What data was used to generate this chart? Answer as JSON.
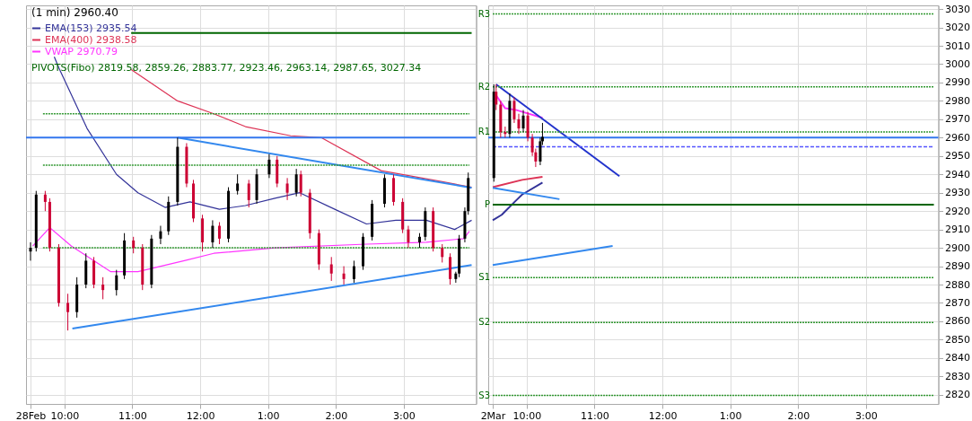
{
  "chart_data": [
    {
      "type": "candlestick",
      "title": "(1 min) 2960.40",
      "x": [
        "--02-28T09:30",
        "--02-28T09:35",
        "--02-28T09:43",
        "--02-28T09:47",
        "--02-28T09:55",
        "--02-28T10:03",
        "--02-28T10:11",
        "--02-28T10:19",
        "--02-28T10:26",
        "--02-28T10:34",
        "--02-28T10:46",
        "--02-28T10:53",
        "--02-28T11:01",
        "--02-28T11:09",
        "--02-28T11:17",
        "--02-28T11:25",
        "--02-28T11:32",
        "--02-28T11:40",
        "--02-28T11:48",
        "--02-28T11:54",
        "--02-28T12:02",
        "--02-28T12:11",
        "--02-28T12:17",
        "--02-28T12:25",
        "--02-28T12:33",
        "--02-28T12:43",
        "--02-28T12:50",
        "--02-28T13:01",
        "--02-28T13:08",
        "--02-28T13:17",
        "--02-28T13:25",
        "--02-28T13:29",
        "--02-28T13:37",
        "--02-28T13:45",
        "--02-28T13:56",
        "--02-28T14:07",
        "--02-28T14:16",
        "--02-28T14:24",
        "--02-28T14:32",
        "--02-28T14:43",
        "--02-28T14:51",
        "--02-28T14:59",
        "--02-28T15:04",
        "--02-28T15:14",
        "--02-28T15:19",
        "--02-28T15:26",
        "--02-28T15:34",
        "--02-28T15:41",
        "--02-28T15:46",
        "--02-28T15:49",
        "--02-28T15:54",
        "--02-28T15:57"
      ],
      "ohlc": [
        [
          2898,
          2903,
          2893,
          2900
        ],
        [
          2900,
          2931,
          2898,
          2929
        ],
        [
          2929,
          2931,
          2920,
          2925
        ],
        [
          2925,
          2927,
          2898,
          2900
        ],
        [
          2900,
          2902,
          2868,
          2870
        ],
        [
          2870,
          2875,
          2855,
          2865
        ],
        [
          2865,
          2884,
          2862,
          2880
        ],
        [
          2880,
          2897,
          2878,
          2893
        ],
        [
          2893,
          2895,
          2878,
          2880
        ],
        [
          2880,
          2884,
          2872,
          2877
        ],
        [
          2877,
          2888,
          2874,
          2885
        ],
        [
          2885,
          2908,
          2883,
          2904
        ],
        [
          2904,
          2906,
          2897,
          2900
        ],
        [
          2900,
          2902,
          2877,
          2880
        ],
        [
          2880,
          2907,
          2878,
          2905
        ],
        [
          2905,
          2912,
          2902,
          2909
        ],
        [
          2909,
          2928,
          2907,
          2925
        ],
        [
          2925,
          2960,
          2923,
          2955
        ],
        [
          2955,
          2957,
          2933,
          2935
        ],
        [
          2935,
          2937,
          2914,
          2916
        ],
        [
          2916,
          2918,
          2898,
          2903
        ],
        [
          2903,
          2915,
          2900,
          2912
        ],
        [
          2912,
          2914,
          2902,
          2905
        ],
        [
          2905,
          2933,
          2903,
          2931
        ],
        [
          2931,
          2940,
          2929,
          2935
        ],
        [
          2935,
          2937,
          2922,
          2926
        ],
        [
          2926,
          2943,
          2924,
          2940
        ],
        [
          2940,
          2951,
          2938,
          2948
        ],
        [
          2948,
          2950,
          2933,
          2935
        ],
        [
          2935,
          2938,
          2926,
          2930
        ],
        [
          2930,
          2943,
          2928,
          2940
        ],
        [
          2940,
          2942,
          2928,
          2930
        ],
        [
          2930,
          2932,
          2905,
          2908
        ],
        [
          2908,
          2910,
          2888,
          2891
        ],
        [
          2891,
          2895,
          2882,
          2886
        ],
        [
          2886,
          2890,
          2880,
          2883
        ],
        [
          2883,
          2893,
          2881,
          2890
        ],
        [
          2890,
          2908,
          2888,
          2906
        ],
        [
          2906,
          2926,
          2904,
          2924
        ],
        [
          2924,
          2940,
          2922,
          2938
        ],
        [
          2938,
          2940,
          2923,
          2925
        ],
        [
          2925,
          2927,
          2908,
          2910
        ],
        [
          2910,
          2912,
          2900,
          2903
        ],
        [
          2903,
          2908,
          2900,
          2906
        ],
        [
          2906,
          2922,
          2904,
          2920
        ],
        [
          2920,
          2922,
          2898,
          2900
        ],
        [
          2900,
          2902,
          2892,
          2895
        ],
        [
          2895,
          2897,
          2880,
          2883
        ],
        [
          2883,
          2887,
          2881,
          2886
        ],
        [
          2886,
          2907,
          2884,
          2905
        ],
        [
          2905,
          2922,
          2903,
          2920
        ],
        [
          2920,
          2941,
          2918,
          2938
        ]
      ],
      "colors": [
        "#000000",
        "#000000",
        "#cc0033",
        "#cc0033",
        "#cc0033",
        "#cc0033",
        "#000000",
        "#000000",
        "#cc0033",
        "#cc0033",
        "#000000",
        "#000000",
        "#cc0033",
        "#cc0033",
        "#000000",
        "#000000",
        "#000000",
        "#000000",
        "#cc0033",
        "#cc0033",
        "#cc0033",
        "#000000",
        "#cc0033",
        "#000000",
        "#000000",
        "#cc0033",
        "#000000",
        "#000000",
        "#cc0033",
        "#cc0033",
        "#000000",
        "#cc0033",
        "#cc0033",
        "#cc0033",
        "#cc0033",
        "#cc0033",
        "#000000",
        "#000000",
        "#000000",
        "#000000",
        "#cc0033",
        "#cc0033",
        "#cc0033",
        "#000000",
        "#000000",
        "#cc0033",
        "#cc0033",
        "#cc0033",
        "#000000",
        "#000000",
        "#000000",
        "#000000"
      ],
      "series": [
        {
          "type": "line",
          "name": "EMA(153) 2935.54",
          "color": "#333399",
          "x": [
            "--02-28T09:51",
            "--02-28T09:55",
            "--02-28T10:20",
            "--02-28T10:46",
            "--02-28T11:05",
            "--02-28T11:29",
            "--02-28T11:51",
            "--02-28T12:17",
            "--02-28T12:40",
            "--02-28T13:06",
            "--02-28T13:28",
            "--02-28T13:59",
            "--02-28T14:27",
            "--02-28T14:53",
            "--02-28T15:20",
            "--02-28T15:45",
            "--02-28T16:00"
          ],
          "values": [
            3004,
            2998,
            2965,
            2940,
            2930,
            2922,
            2925,
            2921,
            2923,
            2927,
            2930,
            2921,
            2913,
            2915,
            2915,
            2910,
            2915
          ]
        },
        {
          "type": "line",
          "name": "EMA(400) 2938.58",
          "color": "#dd3355",
          "x": [
            "--02-28T10:59",
            "--02-28T11:40",
            "--02-28T12:12",
            "--02-28T12:40",
            "--02-28T13:20",
            "--02-28T13:47",
            "--02-28T14:40",
            "--02-28T15:34",
            "--02-28T16:00"
          ],
          "values": [
            2997,
            2980,
            2973,
            2966,
            2961,
            2960,
            2942,
            2936,
            2933
          ]
        },
        {
          "type": "line",
          "name": "VWAP 2970.79",
          "color": "#ff33ff",
          "x": [
            "--02-28T09:32",
            "--02-28T09:47",
            "--02-28T10:06",
            "--02-28T10:41",
            "--02-28T11:05",
            "--02-28T11:46",
            "--02-28T12:12",
            "--02-28T13:06",
            "--02-28T14:27",
            "--02-28T15:20",
            "--02-28T15:53",
            "--02-28T15:58"
          ],
          "values": [
            2901,
            2911,
            2901,
            2887,
            2887,
            2893,
            2897,
            2900,
            2902,
            2903,
            2905,
            2909
          ]
        },
        {
          "type": "line",
          "color": "#3388ee",
          "x": [
            "--02-28T11:40",
            "--02-28T16:00"
          ],
          "values": [
            2960,
            2932.7
          ]
        },
        {
          "type": "line",
          "color": "#3388ee",
          "x": [
            "--02-28T10:07",
            "--02-28T16:00"
          ],
          "values": [
            2856,
            2890.6
          ]
        },
        {
          "type": "line",
          "color": "#006600",
          "x": [
            "--02-28T10:59",
            "--02-28T16:00"
          ],
          "values": [
            3017,
            3017
          ]
        },
        {
          "type": "line",
          "color": "#339933",
          "line_style": "dotted",
          "x": [
            "--02-28T09:41",
            "--02-28T15:58"
          ],
          "values": [
            2973,
            2973
          ]
        },
        {
          "type": "line",
          "color": "#339933",
          "line_style": "dotted",
          "x": [
            "--02-28T09:41",
            "--02-28T15:58"
          ],
          "values": [
            2945,
            2945
          ]
        },
        {
          "type": "line",
          "color": "#339933",
          "line_style": "dotted",
          "x": [
            "--02-28T09:41",
            "--02-28T15:58"
          ],
          "values": [
            2900,
            2900
          ]
        }
      ],
      "ref_lines": [
        {
          "axis": "y",
          "value": 2960,
          "color": "#3377ee"
        }
      ],
      "annotations": [
        "PIVOTS(Fibo) 2819.58, 2859.26, 2883.77, 2923.46, 2963.14, 2987.65, 3027.34"
      ],
      "xlim": [
        "--02-28T09:30",
        "--02-28T16:00"
      ],
      "xticks": [
        {
          "value": "--02-28T09:30",
          "label": "28Feb"
        },
        {
          "value": "--02-28T10:00",
          "label": "10:00"
        },
        {
          "value": "--02-28T11:00",
          "label": "11:00"
        },
        {
          "value": "--02-28T12:00",
          "label": "12:00"
        },
        {
          "value": "--02-28T13:00",
          "label": "1:00"
        },
        {
          "value": "--02-28T14:00",
          "label": "2:00"
        },
        {
          "value": "--02-28T15:00",
          "label": "3:00"
        }
      ],
      "ylim": [
        2815,
        3032
      ],
      "yticks": [
        2820,
        2830,
        2840,
        2850,
        2860,
        2870,
        2880,
        2890,
        2900,
        2910,
        2920,
        2930,
        2940,
        2950,
        2960,
        2970,
        2980,
        2990,
        3000,
        3010,
        3020,
        3030
      ],
      "grid": true,
      "legend": "top left",
      "marker": "none",
      "tick_labels": "x"
    },
    {
      "type": "candlestick",
      "x": [
        "--03-02T09:31",
        "--03-02T09:33",
        "--03-02T09:37",
        "--03-02T09:41",
        "--03-02T09:45",
        "--03-02T09:49",
        "--03-02T09:53",
        "--03-02T09:57",
        "--03-02T10:01",
        "--03-02T10:05",
        "--03-02T10:08",
        "--03-02T10:12",
        "--03-02T10:14"
      ],
      "ohlc": [
        [
          2938,
          2989,
          2936,
          2985
        ],
        [
          2985,
          2989,
          2975,
          2978
        ],
        [
          2978,
          2980,
          2960,
          2963
        ],
        [
          2963,
          2966,
          2960,
          2962
        ],
        [
          2962,
          2984,
          2960,
          2980
        ],
        [
          2980,
          2982,
          2968,
          2970
        ],
        [
          2970,
          2973,
          2962,
          2965
        ],
        [
          2965,
          2975,
          2963,
          2972
        ],
        [
          2972,
          2974,
          2958,
          2960
        ],
        [
          2960,
          2962,
          2950,
          2952
        ],
        [
          2952,
          2954,
          2944,
          2947
        ],
        [
          2947,
          2960,
          2945,
          2958
        ],
        [
          2958,
          2968,
          2956,
          2960.4
        ]
      ],
      "colors": [
        "#000000",
        "#cc0033",
        "#cc0033",
        "#cc0033",
        "#000000",
        "#cc0033",
        "#cc0033",
        "#000000",
        "#cc0033",
        "#cc0033",
        "#cc0033",
        "#000000",
        "#000000"
      ],
      "series": [
        {
          "type": "line",
          "color": "#333399",
          "x": [
            "--03-02T09:30",
            "--03-02T09:38",
            "--03-02T09:51",
            "--03-02T09:56",
            "--03-02T10:14"
          ],
          "values": [
            2915,
            2918,
            2926,
            2929,
            2935.5
          ]
        },
        {
          "type": "line",
          "color": "#dd3355",
          "x": [
            "--03-02T09:30",
            "--03-02T09:56",
            "--03-02T10:14"
          ],
          "values": [
            2933,
            2937,
            2938.6
          ]
        },
        {
          "type": "line",
          "color": "#ff33ff",
          "x": [
            "--03-02T09:33",
            "--03-02T09:41",
            "--03-02T09:51",
            "--03-02T10:14"
          ],
          "values": [
            2983,
            2976,
            2975,
            2970.8
          ]
        },
        {
          "type": "line",
          "color": "#3388ee",
          "x": [
            "--03-02T09:30",
            "--03-02T10:29"
          ],
          "values": [
            2932.7,
            2926.5
          ]
        },
        {
          "type": "line",
          "color": "#3388ee",
          "x": [
            "--03-02T09:30",
            "--03-02T11:16"
          ],
          "values": [
            2890.6,
            2901
          ]
        },
        {
          "type": "line",
          "color": "#2233cc",
          "x": [
            "--03-02T09:33",
            "--03-02T11:22"
          ],
          "values": [
            2989,
            2939
          ]
        },
        {
          "type": "line",
          "color": "#5555ff",
          "line_style": "dashed",
          "x": [
            "--03-02T09:30",
            "--03-02T16:00"
          ],
          "values": [
            2955,
            2955
          ]
        },
        {
          "type": "line",
          "color": "#339933",
          "line_style": "dotted",
          "x": [
            "--03-02T09:30",
            "--03-02T16:00"
          ],
          "values": [
            3027.3,
            3027.3
          ]
        },
        {
          "type": "line",
          "color": "#339933",
          "line_style": "dotted",
          "x": [
            "--03-02T09:30",
            "--03-02T16:00"
          ],
          "values": [
            2987.7,
            2987.7
          ]
        },
        {
          "type": "line",
          "color": "#339933",
          "line_style": "dotted",
          "x": [
            "--03-02T09:30",
            "--03-02T16:00"
          ],
          "values": [
            2963.1,
            2963.1
          ]
        },
        {
          "type": "line",
          "color": "#006600",
          "x": [
            "--03-02T09:30",
            "--03-02T16:00"
          ],
          "values": [
            2923.5,
            2923.5
          ]
        },
        {
          "type": "line",
          "color": "#339933",
          "line_style": "dotted",
          "x": [
            "--03-02T09:30",
            "--03-02T16:00"
          ],
          "values": [
            2883.8,
            2883.8
          ]
        },
        {
          "type": "line",
          "color": "#339933",
          "line_style": "dotted",
          "x": [
            "--03-02T09:30",
            "--03-02T16:00"
          ],
          "values": [
            2859.3,
            2859.3
          ]
        },
        {
          "type": "line",
          "color": "#339933",
          "line_style": "dotted",
          "x": [
            "--03-02T09:30",
            "--03-02T16:00"
          ],
          "values": [
            2819.6,
            2819.6
          ]
        }
      ],
      "ref_lines": [
        {
          "axis": "y",
          "value": 2960,
          "color": "#3377ee"
        }
      ],
      "annotations": [
        {
          "text": "R3",
          "x": "--03-02T09:30",
          "y": 3027.3
        },
        {
          "text": "R2",
          "x": "--03-02T09:30",
          "y": 2987.7
        },
        {
          "text": "R1",
          "x": "--03-02T09:30",
          "y": 2963.1
        },
        {
          "text": "P",
          "x": "--03-02T09:30",
          "y": 2923.5
        },
        {
          "text": "S1",
          "x": "--03-02T09:30",
          "y": 2883.8
        },
        {
          "text": "S2",
          "x": "--03-02T09:30",
          "y": 2859.3
        },
        {
          "text": "S3",
          "x": "--03-02T09:30",
          "y": 2819.6
        }
      ],
      "xlim": [
        "--03-02T09:30",
        "--03-02T16:00"
      ],
      "xticks": [
        {
          "value": "--03-02T09:30",
          "label": "2Mar"
        },
        {
          "value": "--03-02T10:00",
          "label": "10:00"
        },
        {
          "value": "--03-02T11:00",
          "label": "11:00"
        },
        {
          "value": "--03-02T12:00",
          "label": "12:00"
        },
        {
          "value": "--03-02T13:00",
          "label": "1:00"
        },
        {
          "value": "--03-02T14:00",
          "label": "2:00"
        },
        {
          "value": "--03-02T15:00",
          "label": "3:00"
        }
      ],
      "ylim": [
        2815,
        3032
      ],
      "yticks": [
        2820,
        2830,
        2840,
        2850,
        2860,
        2870,
        2880,
        2890,
        2900,
        2910,
        2920,
        2930,
        2940,
        2950,
        2960,
        2970,
        2980,
        2990,
        3000,
        3010,
        3020,
        3030
      ],
      "grid": true,
      "marker": "none"
    }
  ]
}
